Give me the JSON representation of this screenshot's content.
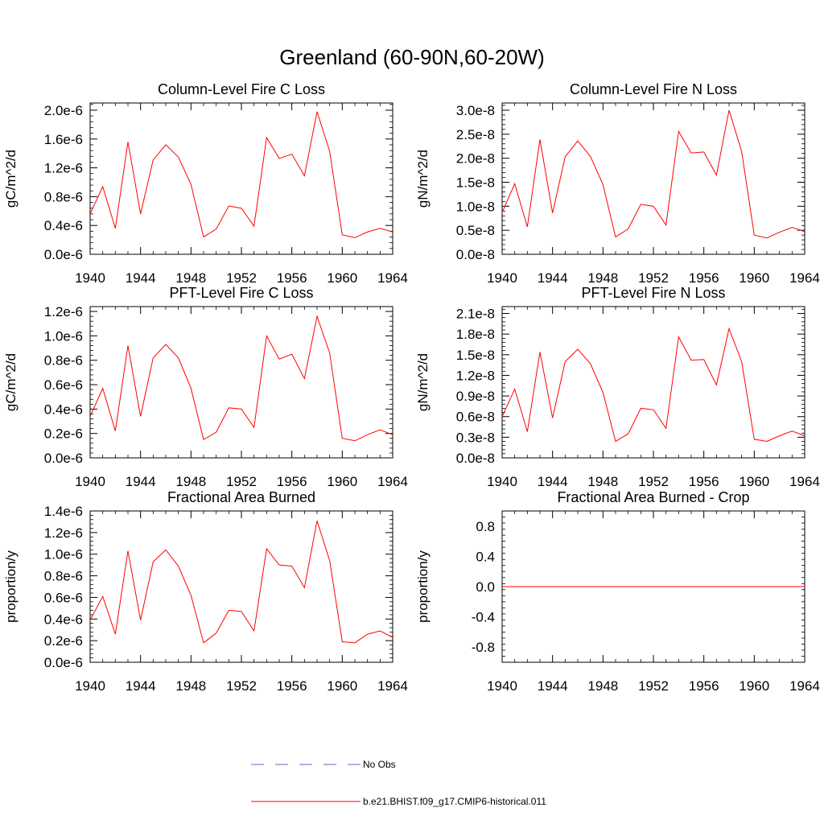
{
  "figure_title": "Greenland (60-90N,60-20W)",
  "legend": {
    "entries": [
      {
        "label": "No Obs",
        "color": "#6a6ad0",
        "style": "dashed"
      },
      {
        "label": "b.e21.BHIST.f09_g17.CMIP6-historical.011",
        "color": "#ff0000",
        "style": "solid"
      }
    ]
  },
  "chart_data": [
    {
      "type": "line",
      "title": "Column-Level Fire C Loss",
      "ylabel": "gC/m^2/d",
      "xlim": [
        1940,
        1964
      ],
      "ylim": [
        0,
        2.1e-06
      ],
      "xticks": [
        1940,
        1944,
        1948,
        1952,
        1956,
        1960,
        1964
      ],
      "yticks": [
        0,
        4e-07,
        8e-07,
        1.2e-06,
        1.6e-06,
        2e-06
      ],
      "ytick_labels": [
        "0.0e-6",
        "0.4e-6",
        "0.8e-6",
        "1.2e-6",
        "1.6e-6",
        "2.0e-6"
      ],
      "x": [
        1940,
        1941,
        1942,
        1943,
        1944,
        1945,
        1946,
        1947,
        1948,
        1949,
        1950,
        1951,
        1952,
        1953,
        1954,
        1955,
        1956,
        1957,
        1958,
        1959,
        1960,
        1961,
        1962,
        1963,
        1964
      ],
      "series": [
        {
          "name": "b.e21.BHIST.f09_g17.CMIP6-historical.011",
          "color": "#ff0000",
          "values": [
            5.6e-07,
            9.4e-07,
            3.6e-07,
            1.56e-06,
            5.6e-07,
            1.31e-06,
            1.52e-06,
            1.35e-06,
            9.7e-07,
            2.4e-07,
            3.5e-07,
            6.7e-07,
            6.4e-07,
            3.9e-07,
            1.62e-06,
            1.33e-06,
            1.39e-06,
            1.09e-06,
            1.98e-06,
            1.43e-06,
            2.7e-07,
            2.3e-07,
            3.1e-07,
            3.6e-07,
            3.1e-07
          ]
        }
      ]
    },
    {
      "type": "line",
      "title": "Column-Level Fire N Loss",
      "ylabel": "gN/m^2/d",
      "xlim": [
        1940,
        1964
      ],
      "ylim": [
        0,
        3.15e-08
      ],
      "xticks": [
        1940,
        1944,
        1948,
        1952,
        1956,
        1960,
        1964
      ],
      "yticks": [
        0,
        5e-09,
        1e-08,
        1.5e-08,
        2e-08,
        2.5e-08,
        3e-08
      ],
      "ytick_labels": [
        "0.0e-8",
        "0.5e-8",
        "1.0e-8",
        "1.5e-8",
        "2.0e-8",
        "2.5e-8",
        "3.0e-8"
      ],
      "x": [
        1940,
        1941,
        1942,
        1943,
        1944,
        1945,
        1946,
        1947,
        1948,
        1949,
        1950,
        1951,
        1952,
        1953,
        1954,
        1955,
        1956,
        1957,
        1958,
        1959,
        1960,
        1961,
        1962,
        1963,
        1964
      ],
      "series": [
        {
          "name": "b.e21.BHIST.f09_g17.CMIP6-historical.011",
          "color": "#ff0000",
          "values": [
            8.7e-09,
            1.47e-08,
            5.7e-09,
            2.39e-08,
            8.6e-09,
            2.03e-08,
            2.36e-08,
            2.04e-08,
            1.45e-08,
            3.6e-09,
            5.3e-09,
            1.04e-08,
            1e-08,
            6.1e-09,
            2.56e-08,
            2.11e-08,
            2.13e-08,
            1.65e-08,
            3e-08,
            2.14e-08,
            4e-09,
            3.4e-09,
            4.6e-09,
            5.6e-09,
            4.7e-09
          ]
        }
      ]
    },
    {
      "type": "line",
      "title": "PFT-Level Fire C Loss",
      "ylabel": "gC/m^2/d",
      "xlim": [
        1940,
        1964
      ],
      "ylim": [
        0,
        1.24e-06
      ],
      "xticks": [
        1940,
        1944,
        1948,
        1952,
        1956,
        1960,
        1964
      ],
      "yticks": [
        0,
        2e-07,
        4e-07,
        6e-07,
        8e-07,
        1e-06,
        1.2e-06
      ],
      "ytick_labels": [
        "0.0e-6",
        "0.2e-6",
        "0.4e-6",
        "0.6e-6",
        "0.8e-6",
        "1.0e-6",
        "1.2e-6"
      ],
      "x": [
        1940,
        1941,
        1942,
        1943,
        1944,
        1945,
        1946,
        1947,
        1948,
        1949,
        1950,
        1951,
        1952,
        1953,
        1954,
        1955,
        1956,
        1957,
        1958,
        1959,
        1960,
        1961,
        1962,
        1963,
        1964
      ],
      "series": [
        {
          "name": "b.e21.BHIST.f09_g17.CMIP6-historical.011",
          "color": "#ff0000",
          "values": [
            3.4e-07,
            5.7e-07,
            2.2e-07,
            9.2e-07,
            3.4e-07,
            8.2e-07,
            9.3e-07,
            8.2e-07,
            5.7e-07,
            1.5e-07,
            2.1e-07,
            4.1e-07,
            4e-07,
            2.5e-07,
            1e-06,
            8.1e-07,
            8.5e-07,
            6.5e-07,
            1.16e-06,
            8.6e-07,
            1.6e-07,
            1.4e-07,
            1.9e-07,
            2.3e-07,
            1.9e-07
          ]
        }
      ]
    },
    {
      "type": "line",
      "title": "PFT-Level Fire N Loss",
      "ylabel": "gN/m^2/d",
      "xlim": [
        1940,
        1964
      ],
      "ylim": [
        0,
        2.2e-08
      ],
      "xticks": [
        1940,
        1944,
        1948,
        1952,
        1956,
        1960,
        1964
      ],
      "yticks": [
        0,
        3e-09,
        6e-09,
        9e-09,
        1.2e-08,
        1.5e-08,
        1.8e-08,
        2.1e-08
      ],
      "ytick_labels": [
        "0.0e-8",
        "0.3e-8",
        "0.6e-8",
        "0.9e-8",
        "1.2e-8",
        "1.5e-8",
        "1.8e-8",
        "2.1e-8"
      ],
      "x": [
        1940,
        1941,
        1942,
        1943,
        1944,
        1945,
        1946,
        1947,
        1948,
        1949,
        1950,
        1951,
        1952,
        1953,
        1954,
        1955,
        1956,
        1957,
        1958,
        1959,
        1960,
        1961,
        1962,
        1963,
        1964
      ],
      "series": [
        {
          "name": "b.e21.BHIST.f09_g17.CMIP6-historical.011",
          "color": "#ff0000",
          "values": [
            6e-09,
            1e-08,
            3.8e-09,
            1.54e-08,
            5.8e-09,
            1.4e-08,
            1.58e-08,
            1.37e-08,
            9.5e-09,
            2.4e-09,
            3.5e-09,
            7.2e-09,
            7e-09,
            4.3e-09,
            1.76e-08,
            1.42e-08,
            1.43e-08,
            1.06e-08,
            1.88e-08,
            1.4e-08,
            2.7e-09,
            2.4e-09,
            3.2e-09,
            3.9e-09,
            3.2e-09
          ]
        }
      ]
    },
    {
      "type": "line",
      "title": "Fractional Area Burned",
      "ylabel": "proportion/y",
      "xlim": [
        1940,
        1964
      ],
      "ylim": [
        0,
        1.4e-06
      ],
      "xticks": [
        1940,
        1944,
        1948,
        1952,
        1956,
        1960,
        1964
      ],
      "yticks": [
        0,
        2e-07,
        4e-07,
        6e-07,
        8e-07,
        1e-06,
        1.2e-06,
        1.4e-06
      ],
      "ytick_labels": [
        "0.0e-6",
        "0.2e-6",
        "0.4e-6",
        "0.6e-6",
        "0.8e-6",
        "1.0e-6",
        "1.2e-6",
        "1.4e-6"
      ],
      "x": [
        1940,
        1941,
        1942,
        1943,
        1944,
        1945,
        1946,
        1947,
        1948,
        1949,
        1950,
        1951,
        1952,
        1953,
        1954,
        1955,
        1956,
        1957,
        1958,
        1959,
        1960,
        1961,
        1962,
        1963,
        1964
      ],
      "series": [
        {
          "name": "b.e21.BHIST.f09_g17.CMIP6-historical.011",
          "color": "#ff0000",
          "values": [
            3.9e-07,
            6.1e-07,
            2.6e-07,
            1.03e-06,
            3.9e-07,
            9.3e-07,
            1.04e-06,
            8.9e-07,
            6.2e-07,
            1.8e-07,
            2.7e-07,
            4.8e-07,
            4.7e-07,
            2.9e-07,
            1.05e-06,
            9e-07,
            8.9e-07,
            6.9e-07,
            1.31e-06,
            9.4e-07,
            1.9e-07,
            1.8e-07,
            2.6e-07,
            2.9e-07,
            2.3e-07
          ]
        }
      ]
    },
    {
      "type": "line",
      "title": "Fractional Area Burned - Crop",
      "ylabel": "proportion/y",
      "xlim": [
        1940,
        1964
      ],
      "ylim": [
        -1.0,
        1.0
      ],
      "xticks": [
        1940,
        1944,
        1948,
        1952,
        1956,
        1960,
        1964
      ],
      "yticks": [
        -0.8,
        -0.4,
        0.0,
        0.4,
        0.8
      ],
      "ytick_labels": [
        "-0.8",
        "-0.4",
        "0.0",
        "0.4",
        "0.8"
      ],
      "x": [
        1940,
        1964
      ],
      "series": [
        {
          "name": "b.e21.BHIST.f09_g17.CMIP6-historical.011",
          "color": "#ff0000",
          "values": [
            0,
            0
          ]
        }
      ]
    }
  ]
}
